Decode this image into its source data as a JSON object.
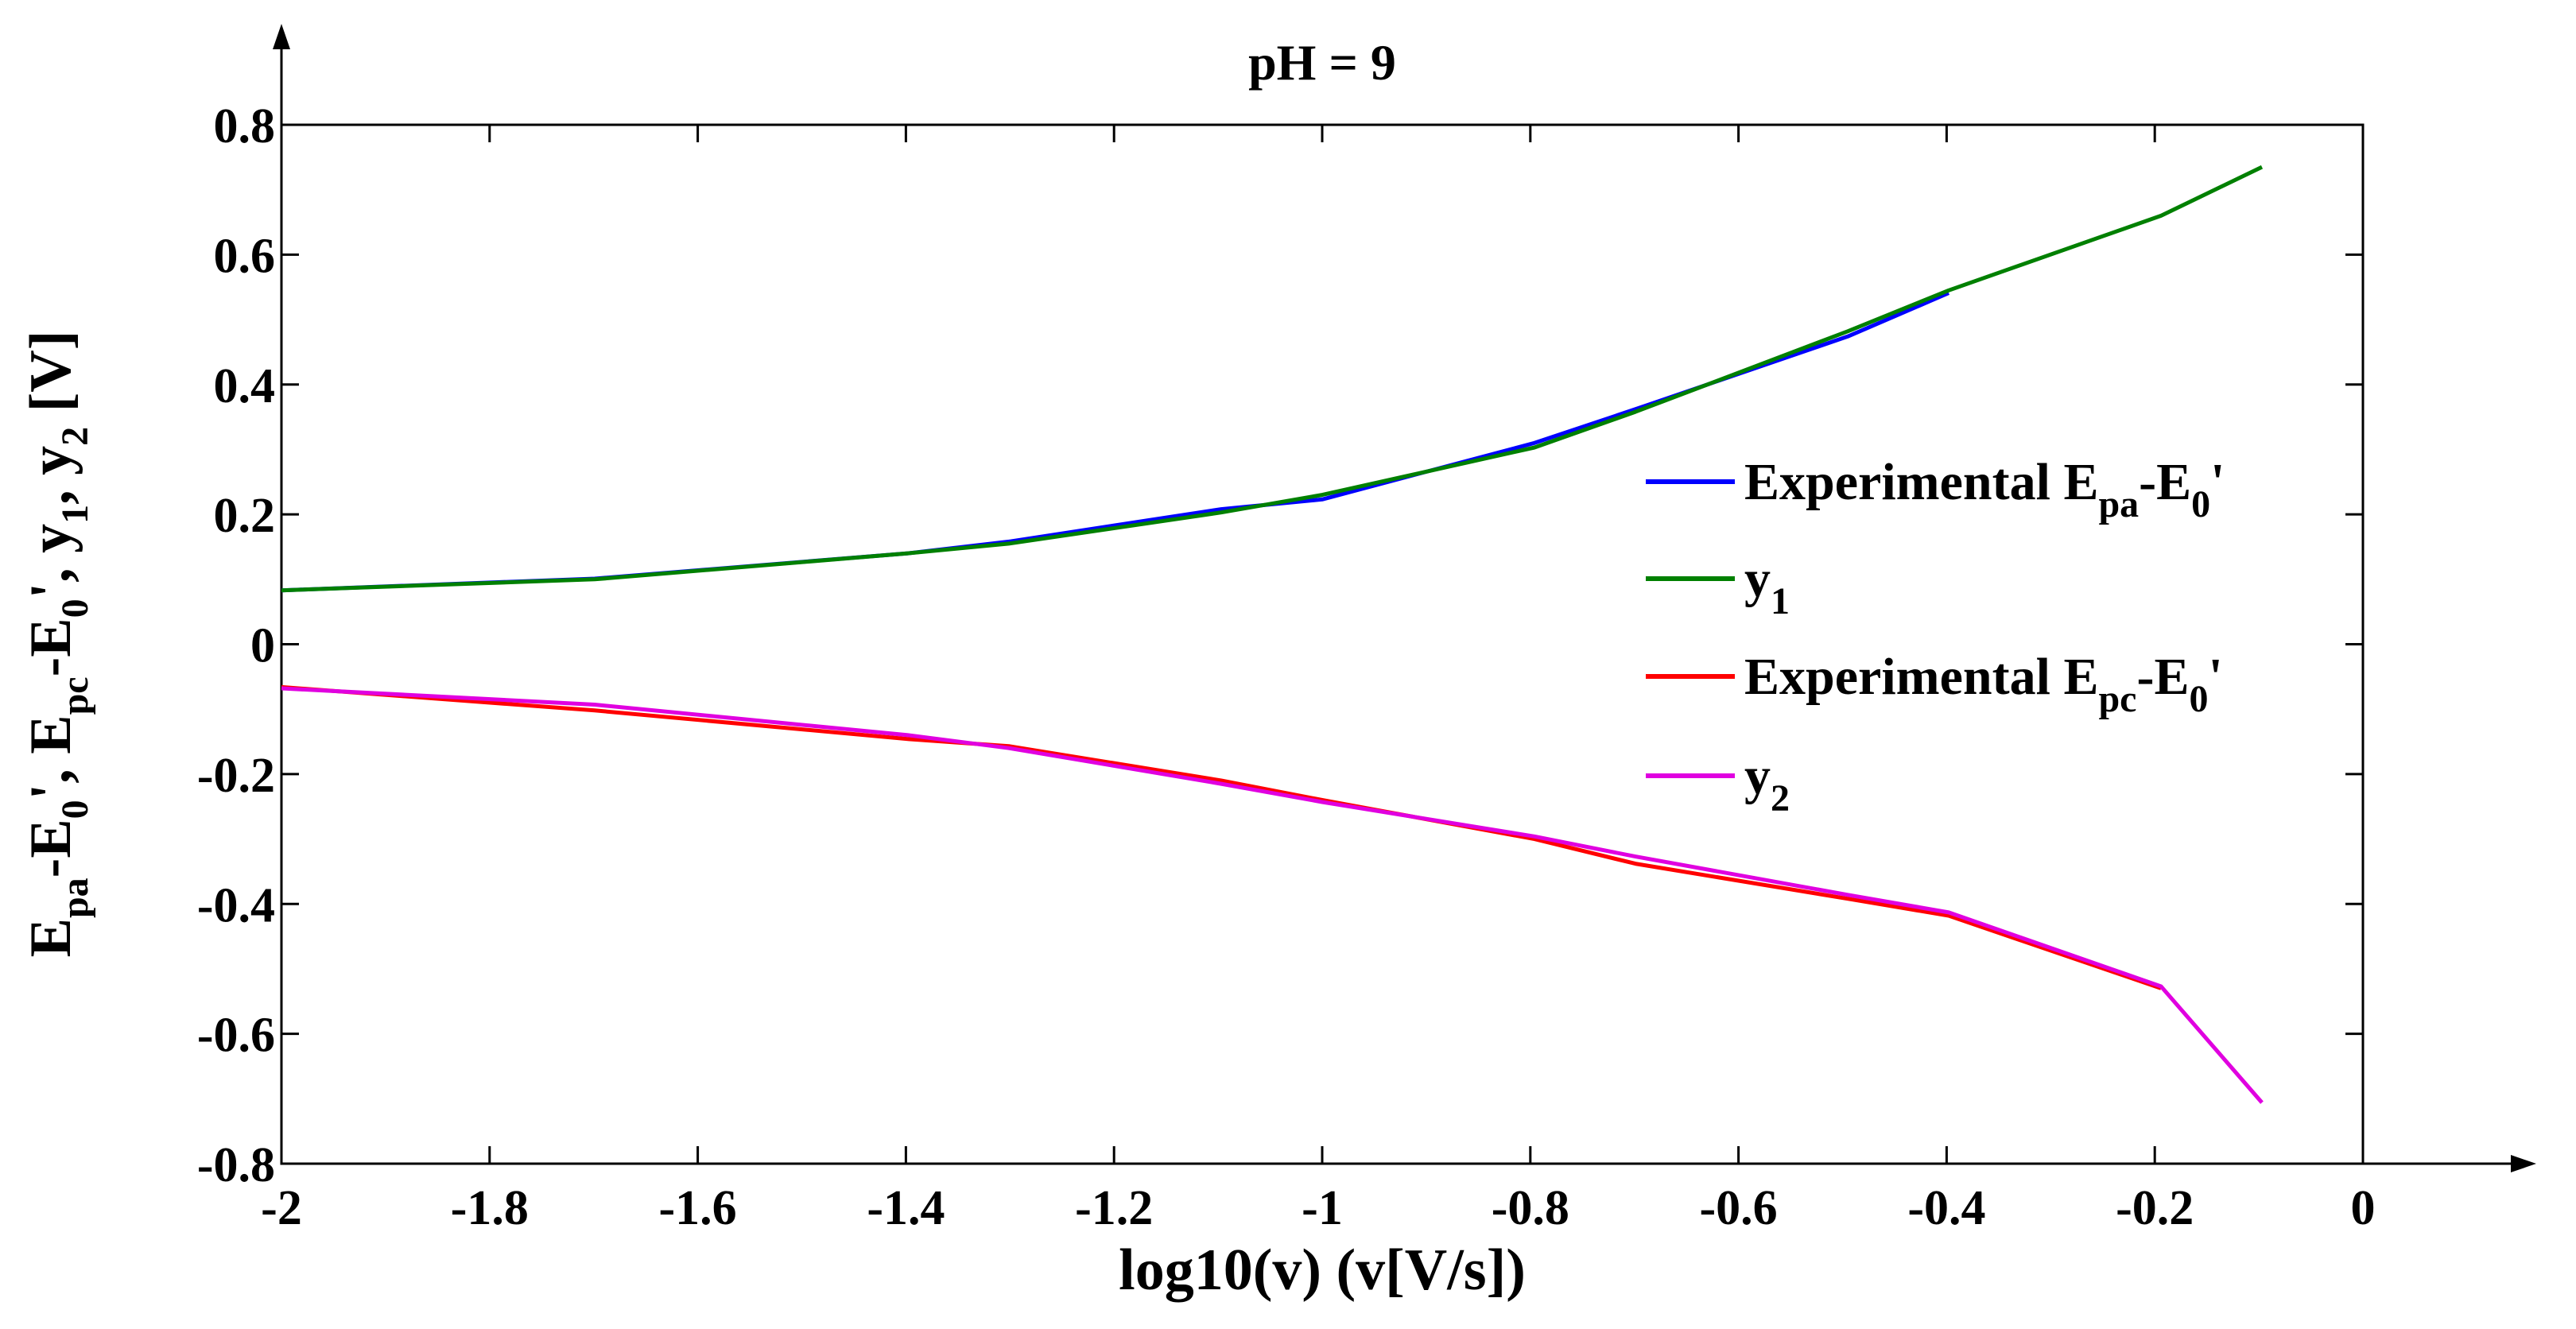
{
  "chart_data": {
    "type": "line",
    "title": "pH = 9",
    "xlabel": "log10(v) (v[V/s])",
    "ylabel": {
      "parts": [
        {
          "t": "E",
          "sub": false
        },
        {
          "t": "pa",
          "sub": true
        },
        {
          "t": "-E",
          "sub": false
        },
        {
          "t": "0",
          "sub": true
        },
        {
          "t": "', E",
          "sub": false
        },
        {
          "t": "pc",
          "sub": true
        },
        {
          "t": "-E",
          "sub": false
        },
        {
          "t": "0",
          "sub": true
        },
        {
          "t": "', y",
          "sub": false
        },
        {
          "t": "1",
          "sub": true
        },
        {
          "t": ", y",
          "sub": false
        },
        {
          "t": "2",
          "sub": true
        },
        {
          "t": " [V]",
          "sub": false
        }
      ]
    },
    "xlim": [
      -2,
      0
    ],
    "ylim": [
      -0.8,
      0.8
    ],
    "xticks": [
      "-2",
      "-1.8",
      "-1.6",
      "-1.4",
      "-1.2",
      "-1",
      "-0.8",
      "-0.6",
      "-0.4",
      "-0.2",
      "0"
    ],
    "xtick_values": [
      -2,
      -1.8,
      -1.6,
      -1.4,
      -1.2,
      -1,
      -0.8,
      -0.6,
      -0.4,
      -0.2,
      0
    ],
    "yticks": [
      "0.8",
      "0.6",
      "0.4",
      "0.2",
      "0",
      "-0.2",
      "-0.4",
      "-0.6",
      "-0.8"
    ],
    "ytick_values": [
      0.8,
      0.6,
      0.4,
      0.2,
      0,
      -0.2,
      -0.4,
      -0.6,
      -0.8
    ],
    "legend_position": "right",
    "series": [
      {
        "name": "Experimental Epa-E0'",
        "legend": [
          {
            "t": "Experimental E",
            "sub": false
          },
          {
            "t": "pa",
            "sub": true
          },
          {
            "t": "-E",
            "sub": false
          },
          {
            "t": "0",
            "sub": true
          },
          {
            "t": "'",
            "sub": false
          }
        ],
        "color": "#0000ff",
        "x": [
          -2,
          -1.699,
          -1.398,
          -1.301,
          -1.097,
          -1.0,
          -0.796,
          -0.699,
          -0.495,
          -0.398
        ],
        "y": [
          0.083,
          0.101,
          0.14,
          0.158,
          0.208,
          0.223,
          0.31,
          0.362,
          0.474,
          0.541
        ]
      },
      {
        "name": "y1",
        "legend": [
          {
            "t": "y",
            "sub": false
          },
          {
            "t": "1",
            "sub": true
          }
        ],
        "color": "#008000",
        "x": [
          -2,
          -1.699,
          -1.398,
          -1.301,
          -1.097,
          -1.0,
          -0.796,
          -0.699,
          -0.495,
          -0.398,
          -0.194,
          -0.097
        ],
        "y": [
          0.083,
          0.1,
          0.14,
          0.155,
          0.203,
          0.23,
          0.303,
          0.358,
          0.482,
          0.545,
          0.66,
          0.735
        ]
      },
      {
        "name": "Experimental Epc-E0'",
        "legend": [
          {
            "t": "Experimental E",
            "sub": false
          },
          {
            "t": "pc",
            "sub": true
          },
          {
            "t": "-E",
            "sub": false
          },
          {
            "t": "0",
            "sub": true
          },
          {
            "t": "'",
            "sub": false
          }
        ],
        "color": "#ff0000",
        "x": [
          -2,
          -1.699,
          -1.398,
          -1.301,
          -1.097,
          -1.0,
          -0.796,
          -0.699,
          -0.495,
          -0.398,
          -0.194
        ],
        "y": [
          -0.066,
          -0.102,
          -0.146,
          -0.157,
          -0.21,
          -0.24,
          -0.3,
          -0.338,
          -0.392,
          -0.418,
          -0.53
        ]
      },
      {
        "name": "y2",
        "legend": [
          {
            "t": "y",
            "sub": false
          },
          {
            "t": "2",
            "sub": true
          }
        ],
        "color": "#e000e0",
        "x": [
          -2,
          -1.699,
          -1.398,
          -1.301,
          -1.097,
          -1.0,
          -0.796,
          -0.699,
          -0.495,
          -0.398,
          -0.194,
          -0.097
        ],
        "y": [
          -0.068,
          -0.093,
          -0.14,
          -0.16,
          -0.215,
          -0.243,
          -0.296,
          -0.327,
          -0.386,
          -0.413,
          -0.527,
          -0.706
        ]
      }
    ]
  }
}
